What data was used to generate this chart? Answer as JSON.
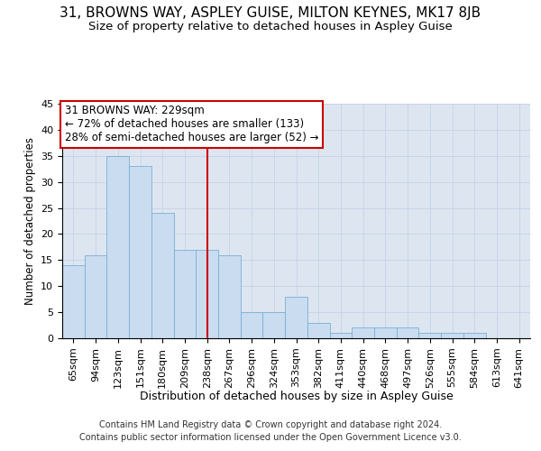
{
  "title": "31, BROWNS WAY, ASPLEY GUISE, MILTON KEYNES, MK17 8JB",
  "subtitle": "Size of property relative to detached houses in Aspley Guise",
  "xlabel": "Distribution of detached houses by size in Aspley Guise",
  "ylabel": "Number of detached properties",
  "categories": [
    "65sqm",
    "94sqm",
    "123sqm",
    "151sqm",
    "180sqm",
    "209sqm",
    "238sqm",
    "267sqm",
    "296sqm",
    "324sqm",
    "353sqm",
    "382sqm",
    "411sqm",
    "440sqm",
    "468sqm",
    "497sqm",
    "526sqm",
    "555sqm",
    "584sqm",
    "613sqm",
    "641sqm"
  ],
  "values": [
    14,
    16,
    35,
    33,
    24,
    17,
    17,
    16,
    5,
    5,
    8,
    3,
    1,
    2,
    2,
    2,
    1,
    1,
    1,
    0,
    0
  ],
  "bar_color": "#c9dcf0",
  "bar_edge_color": "#7aafd4",
  "vline_x": 6.0,
  "vline_color": "#cc0000",
  "annotation_box_color": "#cc0000",
  "annotation_text_line1": "31 BROWNS WAY: 229sqm",
  "annotation_text_line2": "← 72% of detached houses are smaller (133)",
  "annotation_text_line3": "28% of semi-detached houses are larger (52) →",
  "ylim": [
    0,
    45
  ],
  "yticks": [
    0,
    5,
    10,
    15,
    20,
    25,
    30,
    35,
    40,
    45
  ],
  "grid_color": "#c8d5e8",
  "background_color": "#dde6f0",
  "title_fontsize": 11,
  "subtitle_fontsize": 9.5,
  "xlabel_fontsize": 9,
  "ylabel_fontsize": 8.5,
  "tick_fontsize": 8,
  "annotation_fontsize": 8.5,
  "footnote_fontsize": 7,
  "footnote_line1": "Contains HM Land Registry data © Crown copyright and database right 2024.",
  "footnote_line2": "Contains public sector information licensed under the Open Government Licence v3.0."
}
